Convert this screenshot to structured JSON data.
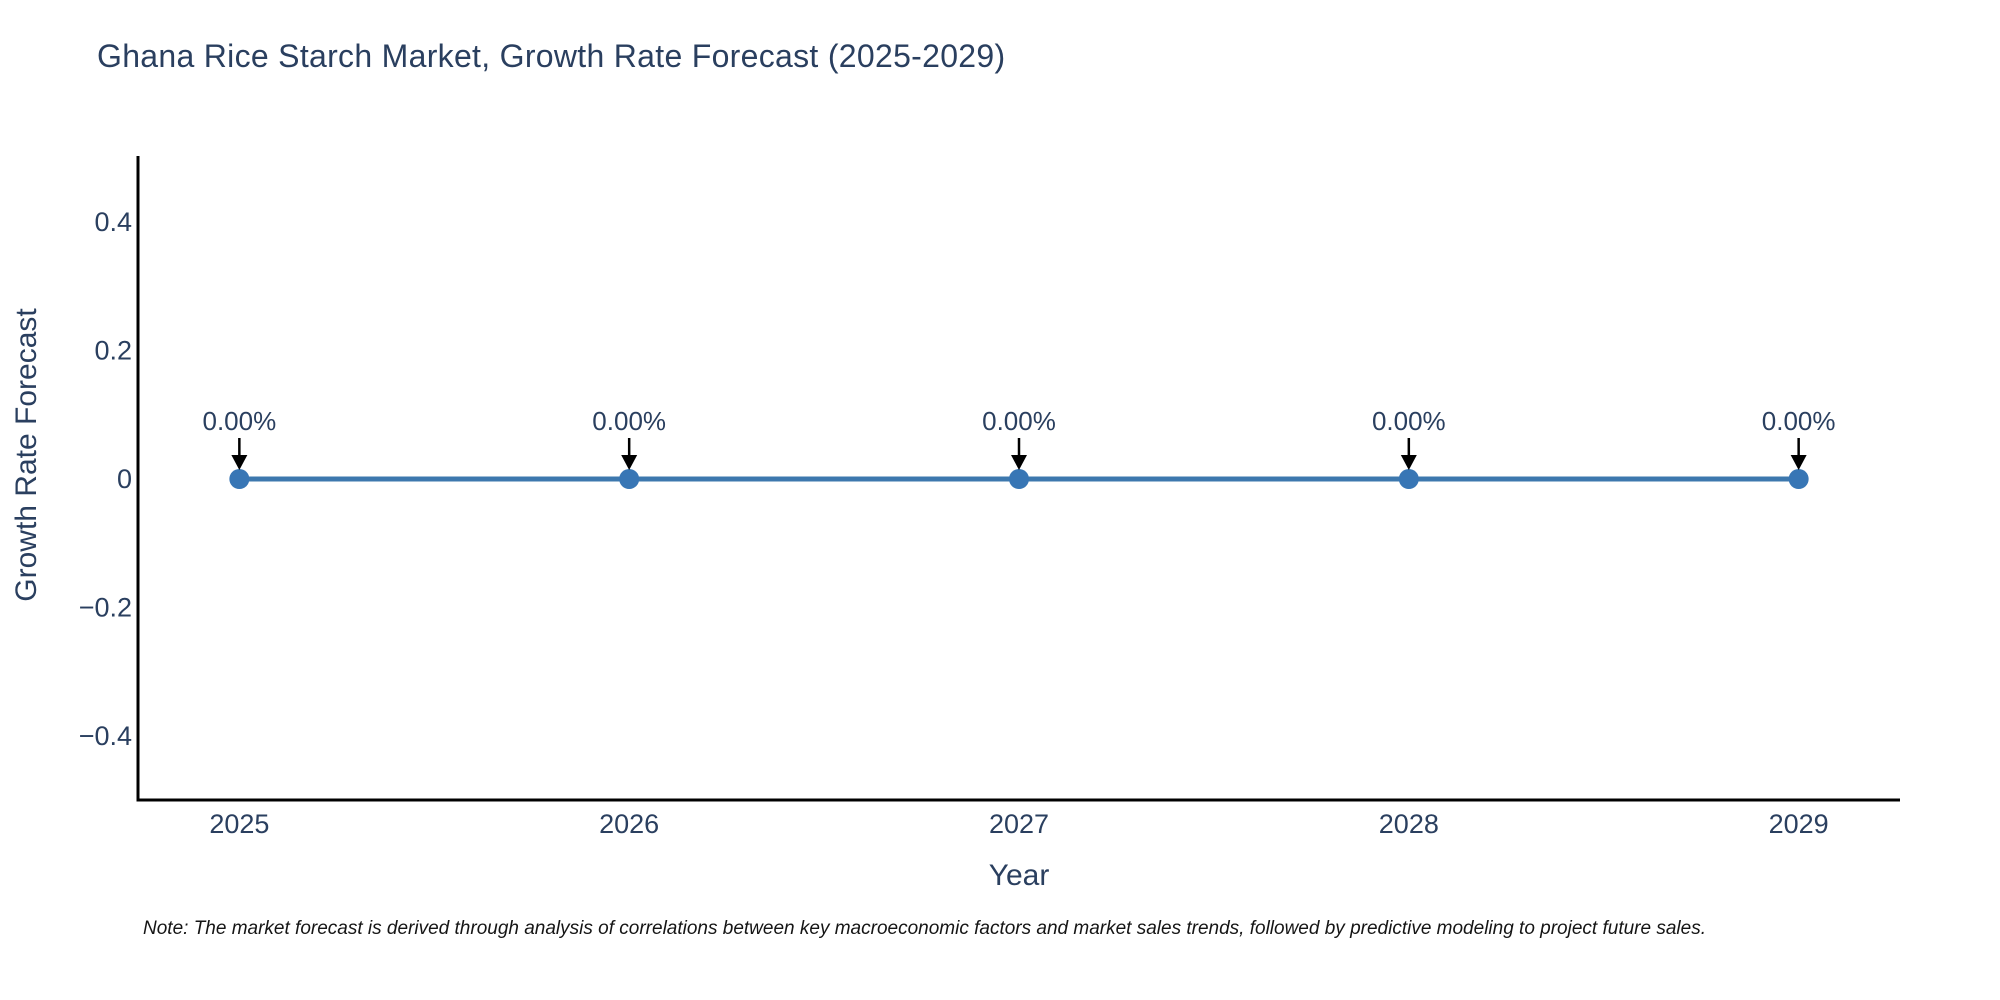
{
  "chart": {
    "title": "Ghana Rice Starch Market, Growth Rate Forecast (2025-2029)",
    "xlabel": "Year",
    "ylabel": "Growth Rate Forecast",
    "note": "Note: The market forecast is derived through analysis of correlations between key macroeconomic factors and market sales trends, followed by predictive modeling to project future sales.",
    "colors": {
      "line": "#3d78ae",
      "marker": "#3876b5",
      "axis": "#000000",
      "text": "#2a3f5f",
      "note_text": "#151515",
      "arrow": "#000000",
      "background": "#ffffff"
    }
  },
  "chart_data": {
    "type": "line",
    "title": "Ghana Rice Starch Market, Growth Rate Forecast (2025-2029)",
    "xlabel": "Year",
    "ylabel": "Growth Rate Forecast",
    "x": [
      2025,
      2026,
      2027,
      2028,
      2029
    ],
    "y": [
      0,
      0,
      0,
      0,
      0
    ],
    "point_labels": [
      "0.00%",
      "0.00%",
      "0.00%",
      "0.00%",
      "0.00%"
    ],
    "xticks": [
      {
        "value": 2025,
        "label": "2025"
      },
      {
        "value": 2026,
        "label": "2026"
      },
      {
        "value": 2027,
        "label": "2027"
      },
      {
        "value": 2028,
        "label": "2028"
      },
      {
        "value": 2029,
        "label": "2029"
      }
    ],
    "yticks": [
      {
        "value": 0.4,
        "label": "0.4"
      },
      {
        "value": 0.2,
        "label": "0.2"
      },
      {
        "value": 0,
        "label": "0"
      },
      {
        "value": -0.2,
        "label": "−0.2"
      },
      {
        "value": -0.4,
        "label": "−0.4"
      }
    ],
    "xlim": [
      2024.74,
      2029.26
    ],
    "ylim": [
      -0.5,
      0.5
    ],
    "grid": false,
    "legend": false,
    "markers": true,
    "annotation_arrows": true
  }
}
